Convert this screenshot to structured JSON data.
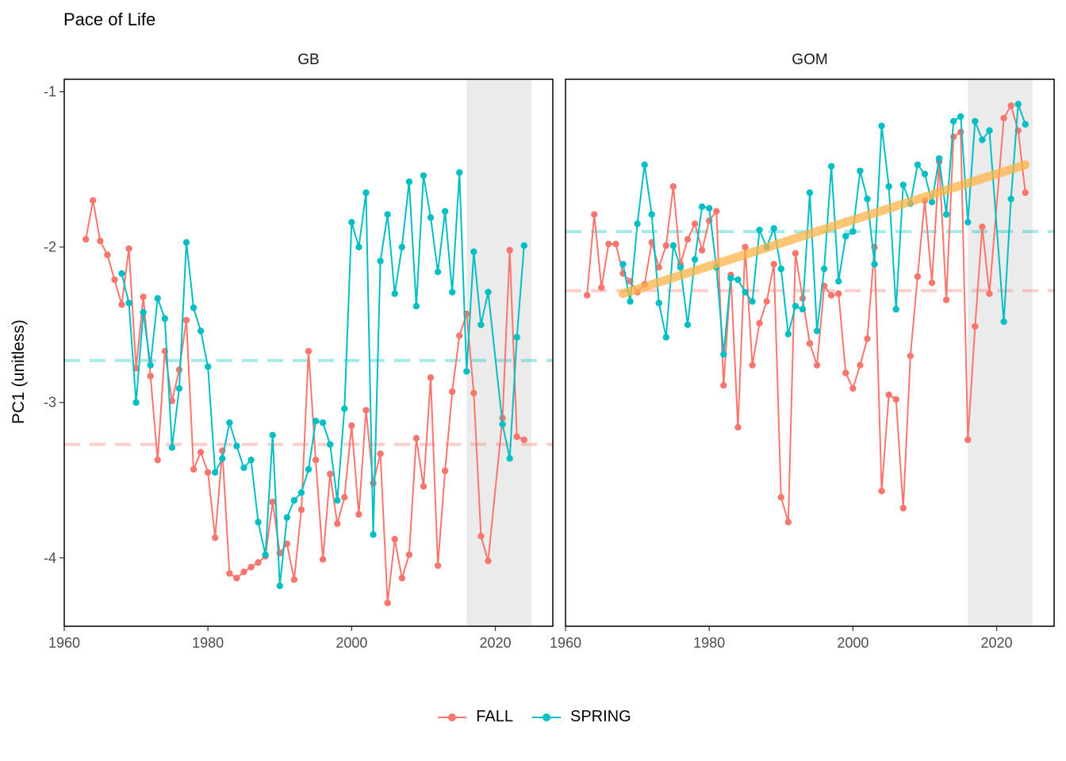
{
  "chart_data": {
    "type": "line",
    "title": "Pace of Life",
    "ylabel": "PC1 (unitless)",
    "xlabel": "",
    "x_ticks": [
      1960,
      1980,
      2000,
      2020
    ],
    "y_ticks": [
      -4,
      -3,
      -2,
      -1
    ],
    "xlim": [
      1960,
      2028
    ],
    "ylim": [
      -4.44,
      -0.92
    ],
    "legend": {
      "position": "bottom",
      "entries": [
        "FALL",
        "SPRING"
      ]
    },
    "colors": {
      "FALL": "#F8766D",
      "SPRING": "#00BFC4",
      "trend": "#FFB347",
      "shade": "#EBEBEB"
    },
    "panels": [
      {
        "name": "GB",
        "shaded_period": [
          2016,
          2025
        ],
        "means": {
          "FALL": -3.27,
          "SPRING": -2.73
        },
        "trend": null,
        "series": [
          {
            "name": "FALL",
            "x": [
              1963,
              1964,
              1965,
              1966,
              1967,
              1968,
              1969,
              1970,
              1971,
              1972,
              1973,
              1974,
              1975,
              1976,
              1977,
              1978,
              1979,
              1980,
              1981,
              1982,
              1983,
              1984,
              1985,
              1986,
              1987,
              1988,
              1989,
              1990,
              1991,
              1992,
              1993,
              1994,
              1995,
              1996,
              1997,
              1998,
              1999,
              2000,
              2001,
              2002,
              2003,
              2004,
              2005,
              2006,
              2007,
              2008,
              2009,
              2010,
              2011,
              2012,
              2013,
              2014,
              2015,
              2016,
              2017,
              2018,
              2019,
              2021,
              2022,
              2023,
              2024
            ],
            "y": [
              -1.95,
              -1.7,
              -1.96,
              -2.05,
              -2.21,
              -2.37,
              -2.01,
              -2.78,
              -2.32,
              -2.83,
              -3.37,
              -2.67,
              -2.99,
              -2.79,
              -2.47,
              -3.43,
              -3.32,
              -3.45,
              -3.87,
              -3.31,
              -4.1,
              -4.13,
              -4.09,
              -4.06,
              -4.03,
              -3.99,
              -3.64,
              -3.97,
              -3.91,
              -4.14,
              -3.69,
              -2.67,
              -3.37,
              -4.01,
              -3.46,
              -3.78,
              -3.61,
              -3.15,
              -3.72,
              -3.05,
              -3.52,
              -3.33,
              -4.29,
              -3.88,
              -4.13,
              -3.98,
              -3.23,
              -3.54,
              -2.84,
              -4.05,
              -3.44,
              -2.93,
              -2.57,
              -2.43,
              -2.94,
              -3.86,
              -4.02,
              -3.1,
              -2.02,
              -3.22,
              -3.24
            ]
          },
          {
            "name": "SPRING",
            "x": [
              1968,
              1969,
              1970,
              1971,
              1972,
              1973,
              1974,
              1975,
              1976,
              1977,
              1978,
              1979,
              1980,
              1981,
              1982,
              1983,
              1984,
              1985,
              1986,
              1987,
              1988,
              1989,
              1990,
              1991,
              1992,
              1993,
              1994,
              1995,
              1996,
              1997,
              1998,
              1999,
              2000,
              2001,
              2002,
              2003,
              2004,
              2005,
              2006,
              2007,
              2008,
              2009,
              2010,
              2011,
              2012,
              2013,
              2014,
              2015,
              2016,
              2017,
              2018,
              2019,
              2021,
              2022,
              2023,
              2024
            ],
            "y": [
              -2.17,
              -2.36,
              -3.0,
              -2.42,
              -2.76,
              -2.33,
              -2.46,
              -3.29,
              -2.91,
              -1.97,
              -2.39,
              -2.54,
              -2.77,
              -3.45,
              -3.36,
              -3.13,
              -3.28,
              -3.42,
              -3.37,
              -3.77,
              -3.98,
              -3.21,
              -4.18,
              -3.74,
              -3.63,
              -3.58,
              -3.43,
              -3.12,
              -3.13,
              -3.27,
              -3.63,
              -3.04,
              -1.84,
              -2.0,
              -1.65,
              -3.85,
              -2.09,
              -1.79,
              -2.3,
              -2.0,
              -1.58,
              -2.38,
              -1.54,
              -1.81,
              -2.16,
              -1.77,
              -2.29,
              -1.52,
              -2.8,
              -2.03,
              -2.5,
              -2.29,
              -3.14,
              -3.36,
              -2.58,
              -1.99
            ]
          }
        ]
      },
      {
        "name": "GOM",
        "shaded_period": [
          2016,
          2025
        ],
        "means": {
          "FALL": -2.28,
          "SPRING": -1.9
        },
        "trend": {
          "x": [
            1968,
            2024
          ],
          "y": [
            -2.3,
            -1.47
          ]
        },
        "series": [
          {
            "name": "FALL",
            "x": [
              1963,
              1964,
              1965,
              1966,
              1967,
              1968,
              1969,
              1970,
              1971,
              1972,
              1973,
              1974,
              1975,
              1976,
              1977,
              1978,
              1979,
              1980,
              1981,
              1982,
              1983,
              1984,
              1985,
              1986,
              1987,
              1988,
              1989,
              1990,
              1991,
              1992,
              1993,
              1994,
              1995,
              1996,
              1997,
              1998,
              1999,
              2000,
              2001,
              2002,
              2003,
              2004,
              2005,
              2006,
              2007,
              2008,
              2009,
              2010,
              2011,
              2012,
              2013,
              2014,
              2015,
              2016,
              2017,
              2018,
              2019,
              2021,
              2022,
              2023,
              2024
            ],
            "y": [
              -2.31,
              -1.79,
              -2.26,
              -1.98,
              -1.98,
              -2.17,
              -2.22,
              -2.29,
              -2.24,
              -1.97,
              -2.13,
              -1.99,
              -1.61,
              -2.11,
              -1.95,
              -1.85,
              -2.02,
              -1.83,
              -1.77,
              -2.89,
              -2.18,
              -3.16,
              -2.0,
              -2.76,
              -2.49,
              -2.35,
              -2.11,
              -3.61,
              -3.77,
              -2.04,
              -2.33,
              -2.62,
              -2.76,
              -2.25,
              -2.31,
              -2.3,
              -2.81,
              -2.91,
              -2.76,
              -2.59,
              -2.0,
              -3.57,
              -2.95,
              -2.98,
              -3.68,
              -2.7,
              -2.19,
              -1.7,
              -2.23,
              -1.45,
              -2.34,
              -1.29,
              -1.26,
              -3.24,
              -2.51,
              -1.87,
              -2.3,
              -1.17,
              -1.09,
              -1.25,
              -1.65
            ]
          },
          {
            "name": "SPRING",
            "x": [
              1968,
              1969,
              1970,
              1971,
              1972,
              1973,
              1974,
              1975,
              1976,
              1977,
              1978,
              1979,
              1980,
              1981,
              1982,
              1983,
              1984,
              1985,
              1986,
              1987,
              1988,
              1989,
              1990,
              1991,
              1992,
              1993,
              1994,
              1995,
              1996,
              1997,
              1998,
              1999,
              2000,
              2001,
              2002,
              2003,
              2004,
              2005,
              2006,
              2007,
              2008,
              2009,
              2010,
              2011,
              2012,
              2013,
              2014,
              2015,
              2016,
              2017,
              2018,
              2019,
              2021,
              2022,
              2023,
              2024
            ],
            "y": [
              -2.11,
              -2.35,
              -1.85,
              -1.47,
              -1.79,
              -2.36,
              -2.58,
              -1.99,
              -2.13,
              -2.5,
              -2.08,
              -1.74,
              -1.75,
              -2.13,
              -2.69,
              -2.2,
              -2.21,
              -2.29,
              -2.35,
              -1.89,
              -2.0,
              -1.88,
              -2.14,
              -2.56,
              -2.38,
              -2.4,
              -1.65,
              -2.54,
              -2.14,
              -1.48,
              -2.22,
              -1.93,
              -1.9,
              -1.51,
              -1.69,
              -2.11,
              -1.22,
              -1.61,
              -2.4,
              -1.6,
              -1.72,
              -1.47,
              -1.53,
              -1.71,
              -1.43,
              -1.79,
              -1.19,
              -1.16,
              -1.84,
              -1.19,
              -1.31,
              -1.25,
              -2.48,
              -1.69,
              -1.08,
              -1.21
            ]
          }
        ]
      }
    ]
  }
}
